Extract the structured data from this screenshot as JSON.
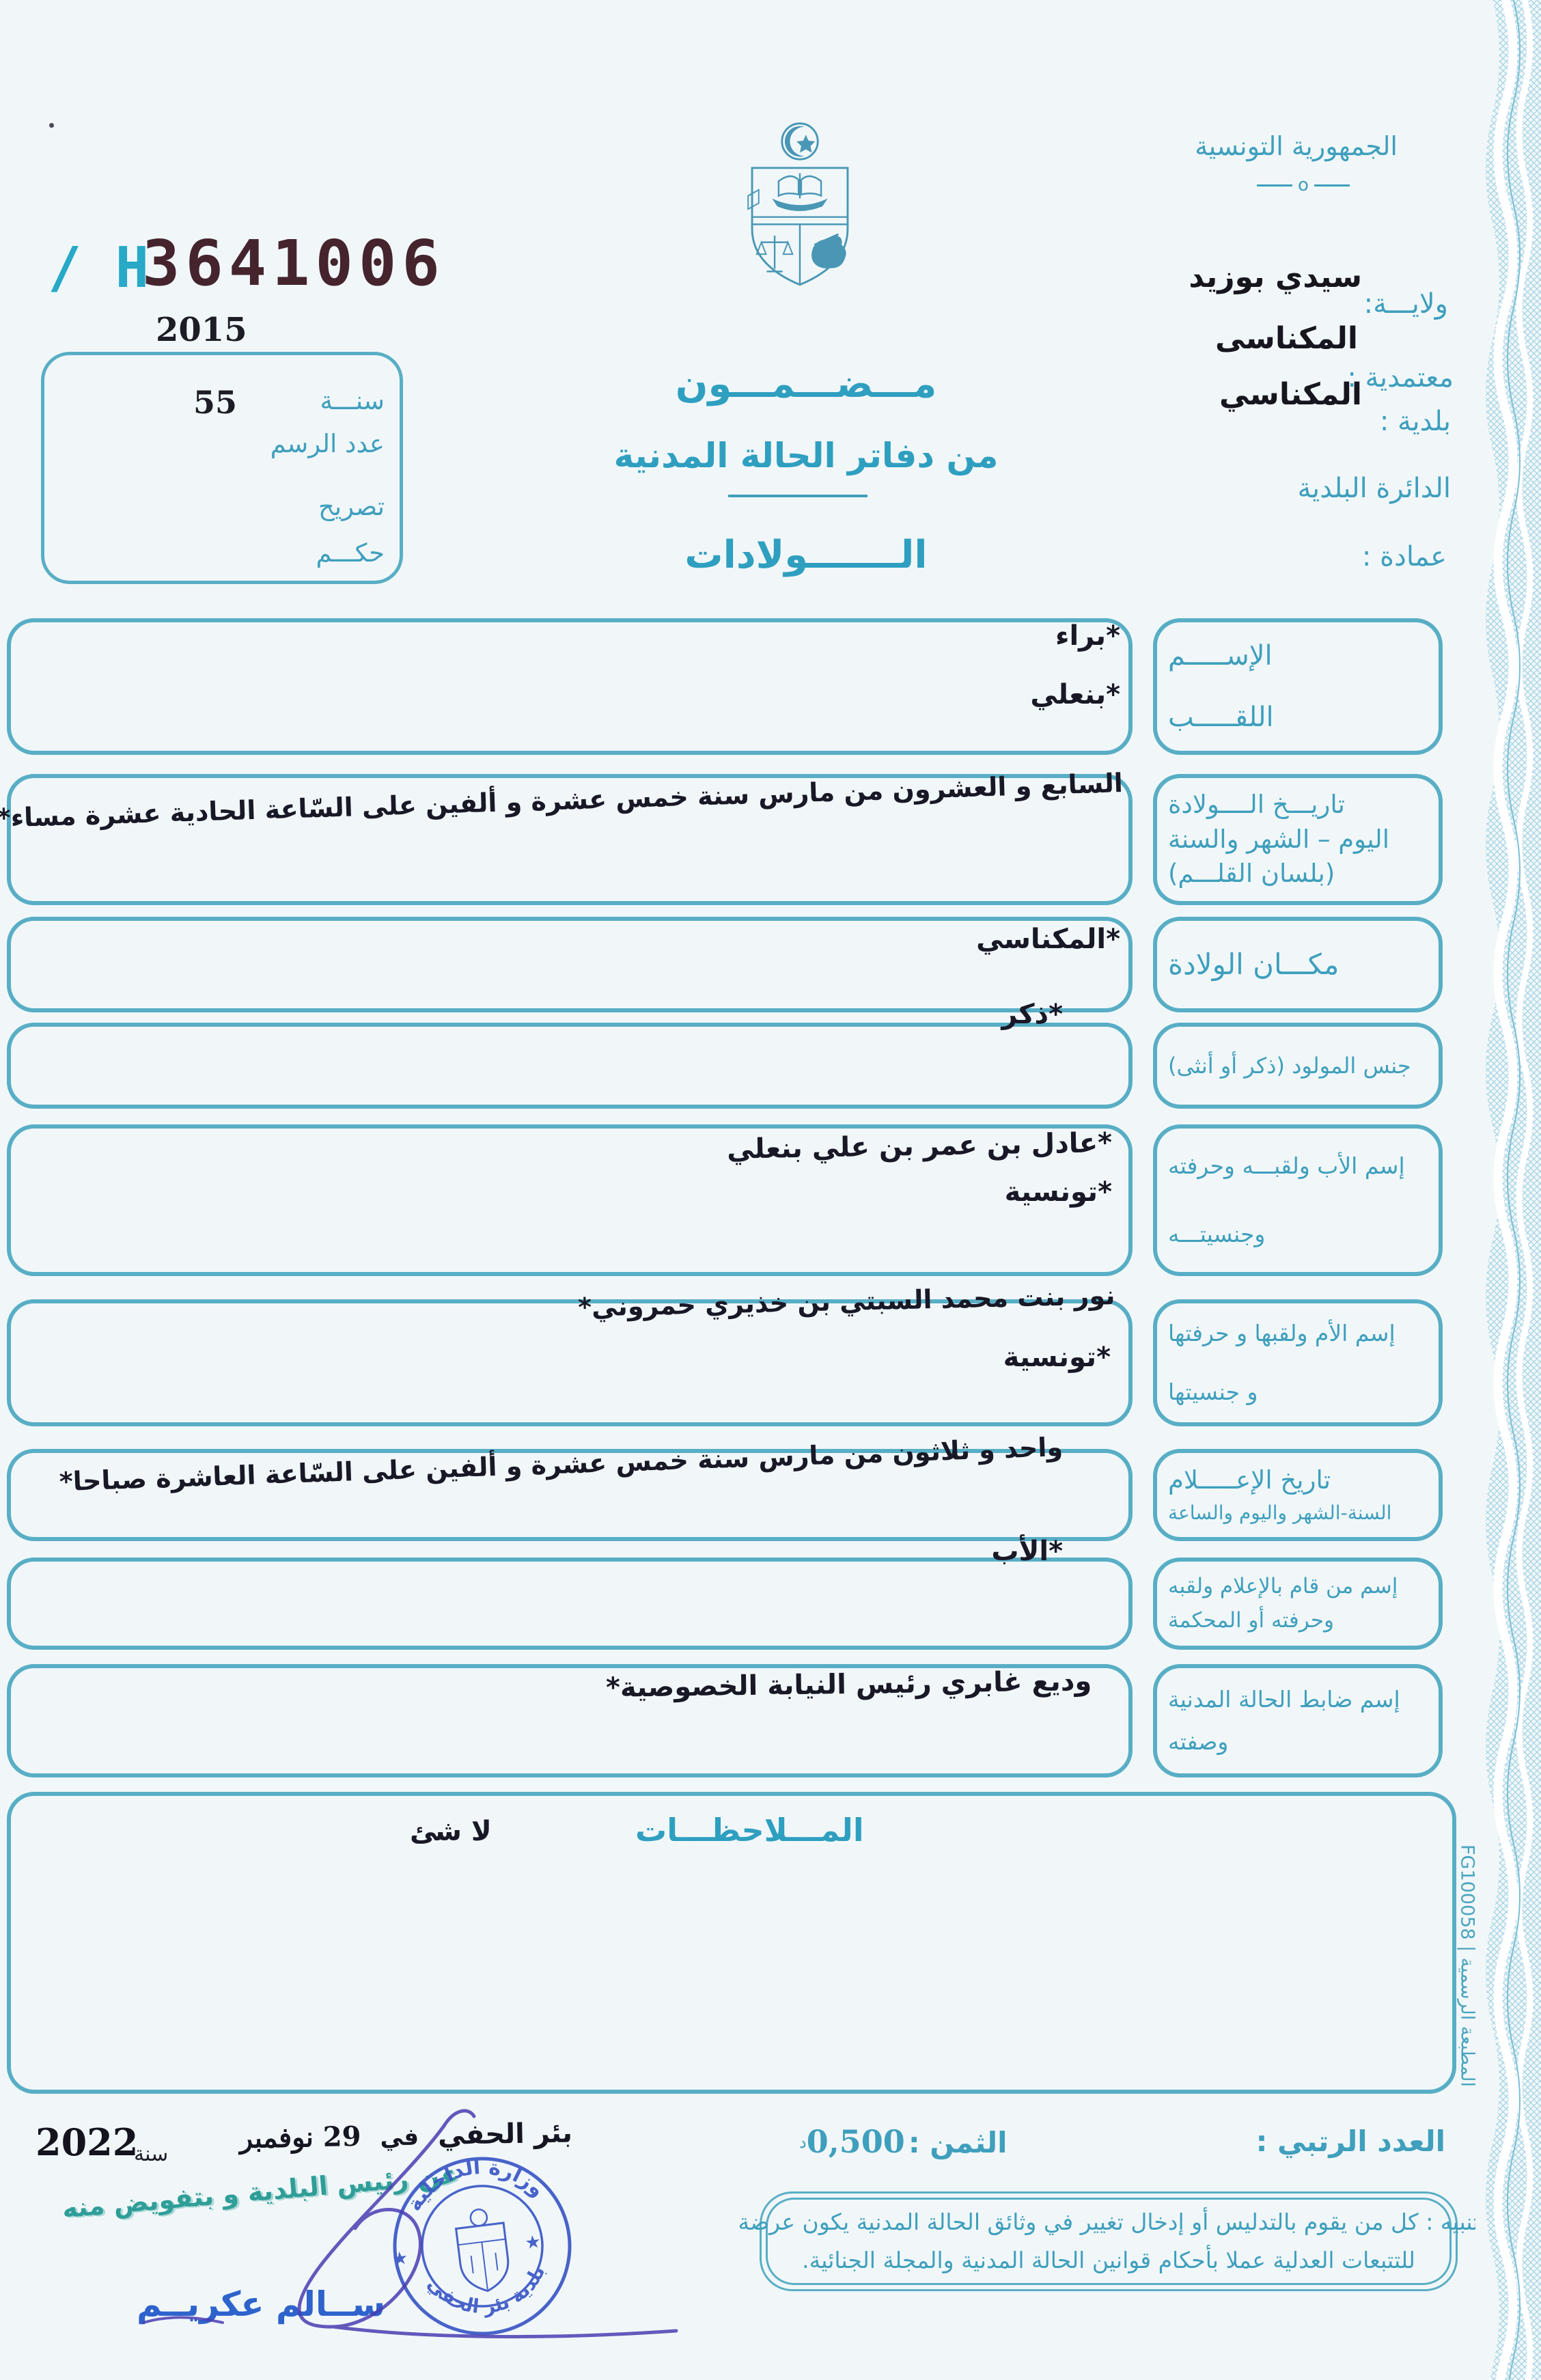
{
  "serial": {
    "prefix": "H /",
    "number": "3641006",
    "year": "2015"
  },
  "registry_box": {
    "year_label": "سنـــة",
    "record_label": "عدد الرسم",
    "declaration_label": "تصريح",
    "judgment_label": "حكـــم",
    "record_value": "55"
  },
  "header": {
    "republic": "الجمهورية التونسية",
    "ornament": "o",
    "state_label": "ولايـــة:",
    "state_value": "سيدي بوزيد",
    "delegation_label": "معتمدية :",
    "delegation_value": "المكناسى",
    "municipality_label": "بلدية :",
    "municipality_value": "المكناسي",
    "district_label": "الدائرة البلدية",
    "omda_label": "عمادة :",
    "title_line1": "مـــضـــمـــون",
    "title_line2": "من دفاتر الحالة المدنية",
    "title_line3": "الـــــــولادات"
  },
  "fields": [
    {
      "label_lines": [
        "الإســـــم",
        "اللقـــــب"
      ],
      "value_lines": [
        "*براء",
        "*بنعلي"
      ]
    },
    {
      "label_lines": [
        "تاريـــخ الــــولادة",
        "اليوم – الشهر والسنة",
        "(بلسان القلـــم)"
      ],
      "value_lines": [
        "السابع و العشرون من مارس سنة خمس عشرة و ألفين على السّاعة الحادية عشرة مساء*"
      ]
    },
    {
      "label_lines": [
        "مكـــان الولادة"
      ],
      "value_lines": [
        "*المكناسي"
      ]
    },
    {
      "label_lines": [
        "جنس المولود (ذكر أو أنثى)"
      ],
      "value_lines": [
        "*ذكر"
      ]
    },
    {
      "label_lines": [
        "إسم الأب ولقبـــه وحرفته",
        "وجنسيتـــه"
      ],
      "value_lines": [
        "*عادل بن عمر بن علي بنعلي",
        "*تونسية"
      ]
    },
    {
      "label_lines": [
        "إسم الأم ولقبها و حرفتها",
        "و جنسيتها"
      ],
      "value_lines": [
        "نور بنت محمد السبتي بن خذيري حمروني*",
        "*تونسية"
      ]
    },
    {
      "label_lines": [
        "تاريخ الإعـــــلام",
        "السنة-الشهر واليوم والساعة"
      ],
      "value_lines": [
        "واحد و ثلاثون من مارس سنة خمس عشرة و ألفين على السّاعة العاشرة صباحا*"
      ]
    },
    {
      "label_lines": [
        "إسم من قام بالإعلام ولقبه",
        "وحرفته أو المحكمة"
      ],
      "value_lines": [
        "*الأب"
      ]
    },
    {
      "label_lines": [
        "إسم ضابط الحالة المدنية",
        "وصفته"
      ],
      "value_lines": [
        "وديع غابري رئيس النيابة الخصوصية*"
      ]
    }
  ],
  "remarks": {
    "title": "المـــلاحظـــات",
    "value": "لا شئ"
  },
  "printer_note": "المطبعة الرسمية | FG100058",
  "footer": {
    "ordinal_label": "العدد الرتبي :",
    "price_label": "الثمن :",
    "price_value": "0,500",
    "price_unit": "د",
    "place": "بئر الحفي",
    "in_word": "في",
    "date": "29 نوفمبر",
    "year_word": "سنة",
    "year": "2022",
    "delegation_line": "عن رئيس البلدية و بتفويض منه",
    "signer_name": "ســالم عكريــم",
    "stamp_top": "وزارة الداخلية",
    "stamp_bottom": "بلدية بئر الحفي",
    "warning_line1": "تنبيه : كل من يقوم بالتدليس أو إدخال تغيير في وثائق الحالة المدنية يكون عرضة",
    "warning_line2": "للتتبعات العدلية عملا بأحكام قوانين الحالة المدنية والمجلة الجنائية."
  },
  "colors": {
    "teal_border": "#58aec5",
    "teal_text": "#3f9fbd",
    "dark_ink": "#191826",
    "serial_cyan": "#27a9c7",
    "serial_maroon": "#45242e",
    "stamp_blue": "#3a57c5",
    "signature_ink": "#4a3db2",
    "delegation_teal": "#2f9e98",
    "name_stamp_blue": "#2e63cc"
  }
}
